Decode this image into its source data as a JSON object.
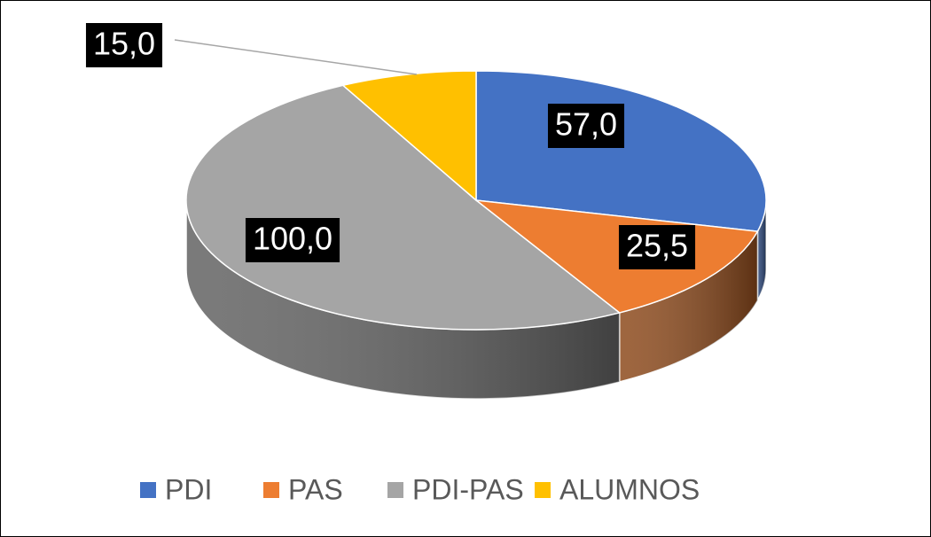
{
  "chart_data": {
    "type": "pie",
    "three_d": true,
    "categories": [
      "PDI",
      "PAS",
      "PDI-PAS",
      "ALUMNOS"
    ],
    "values": [
      57,
      25.5,
      100,
      15
    ],
    "value_labels": [
      "57,0",
      "25,5",
      "100,0",
      "15,0"
    ],
    "colors": [
      "#4472c4",
      "#ed7d31",
      "#a5a5a5",
      "#ffc000"
    ],
    "legend": "bottom"
  }
}
